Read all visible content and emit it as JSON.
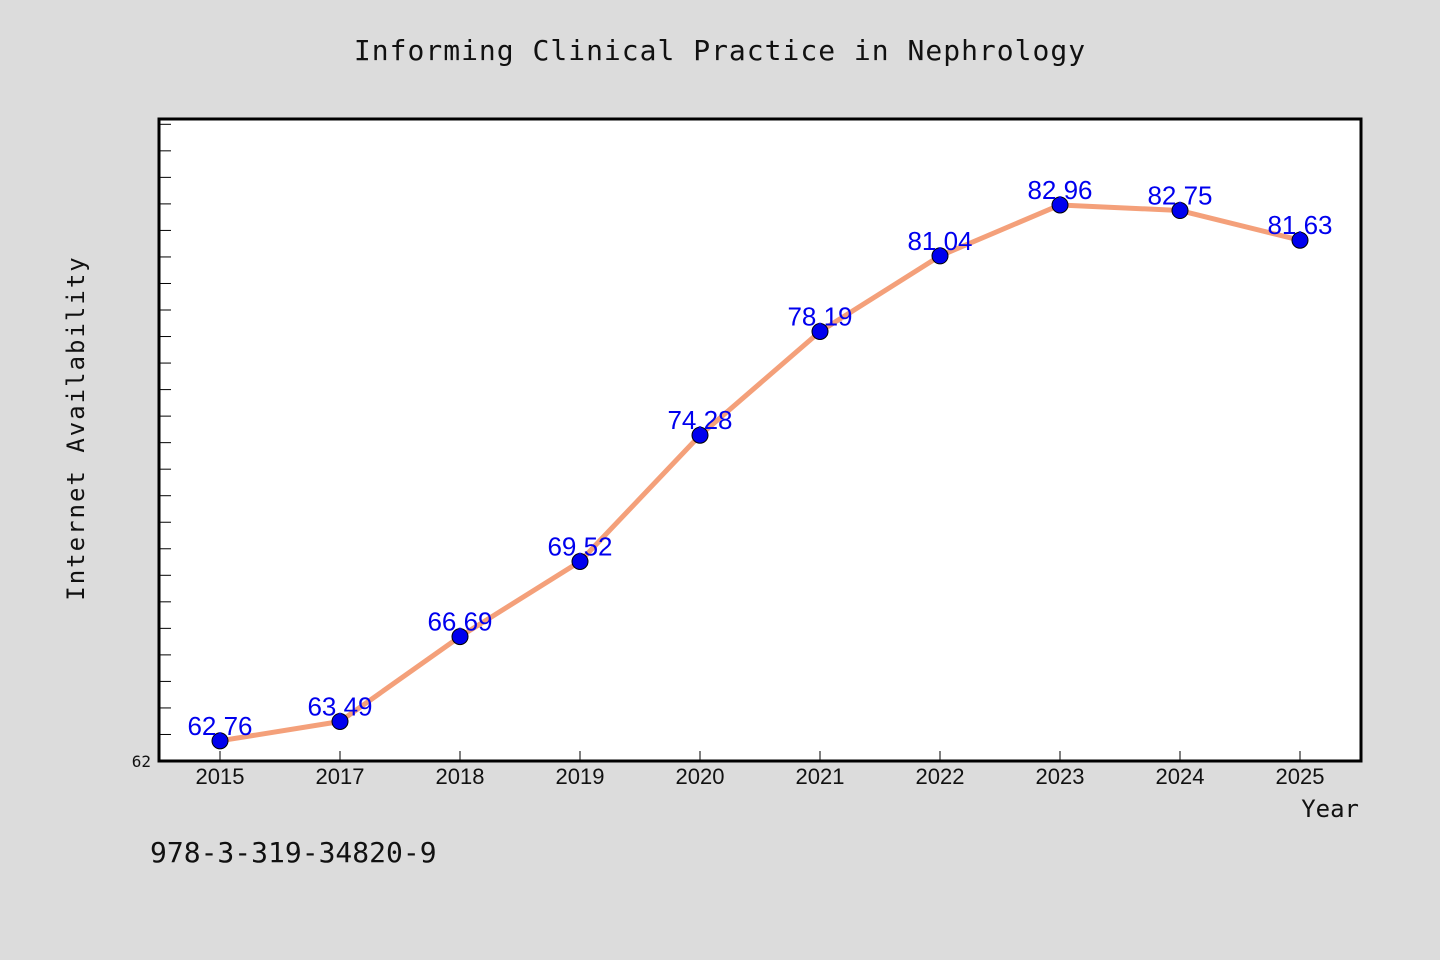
{
  "chart_data": {
    "type": "line",
    "title": "Informing Clinical Practice in Nephrology",
    "xlabel": "Year",
    "ylabel": "Internet Availability",
    "categories": [
      "2015",
      "2017",
      "2018",
      "2019",
      "2020",
      "2021",
      "2022",
      "2023",
      "2024",
      "2025"
    ],
    "series": [
      {
        "values": [
          62.76,
          63.49,
          66.69,
          69.52,
          74.28,
          78.19,
          81.04,
          82.96,
          82.75,
          81.63
        ],
        "data_labels": [
          "62.76",
          "63.49",
          "66.69",
          "69.52",
          "74.28",
          "78.19",
          "81.04",
          "82.96",
          "82.75",
          "81.63"
        ]
      }
    ],
    "ylim": [
      62,
      86.2
    ],
    "y_tick_label": "62",
    "y_tick_label_value": 62,
    "y_minor_tick_step": 1,
    "grid": false,
    "line_color": "#f4a07a",
    "marker_color": "#0000ee",
    "data_label_color": "#0000ee",
    "background_color": "#dcdcdc",
    "plot_background_color": "#ffffff"
  },
  "footer": {
    "isbn": "978-3-319-34820-9"
  }
}
